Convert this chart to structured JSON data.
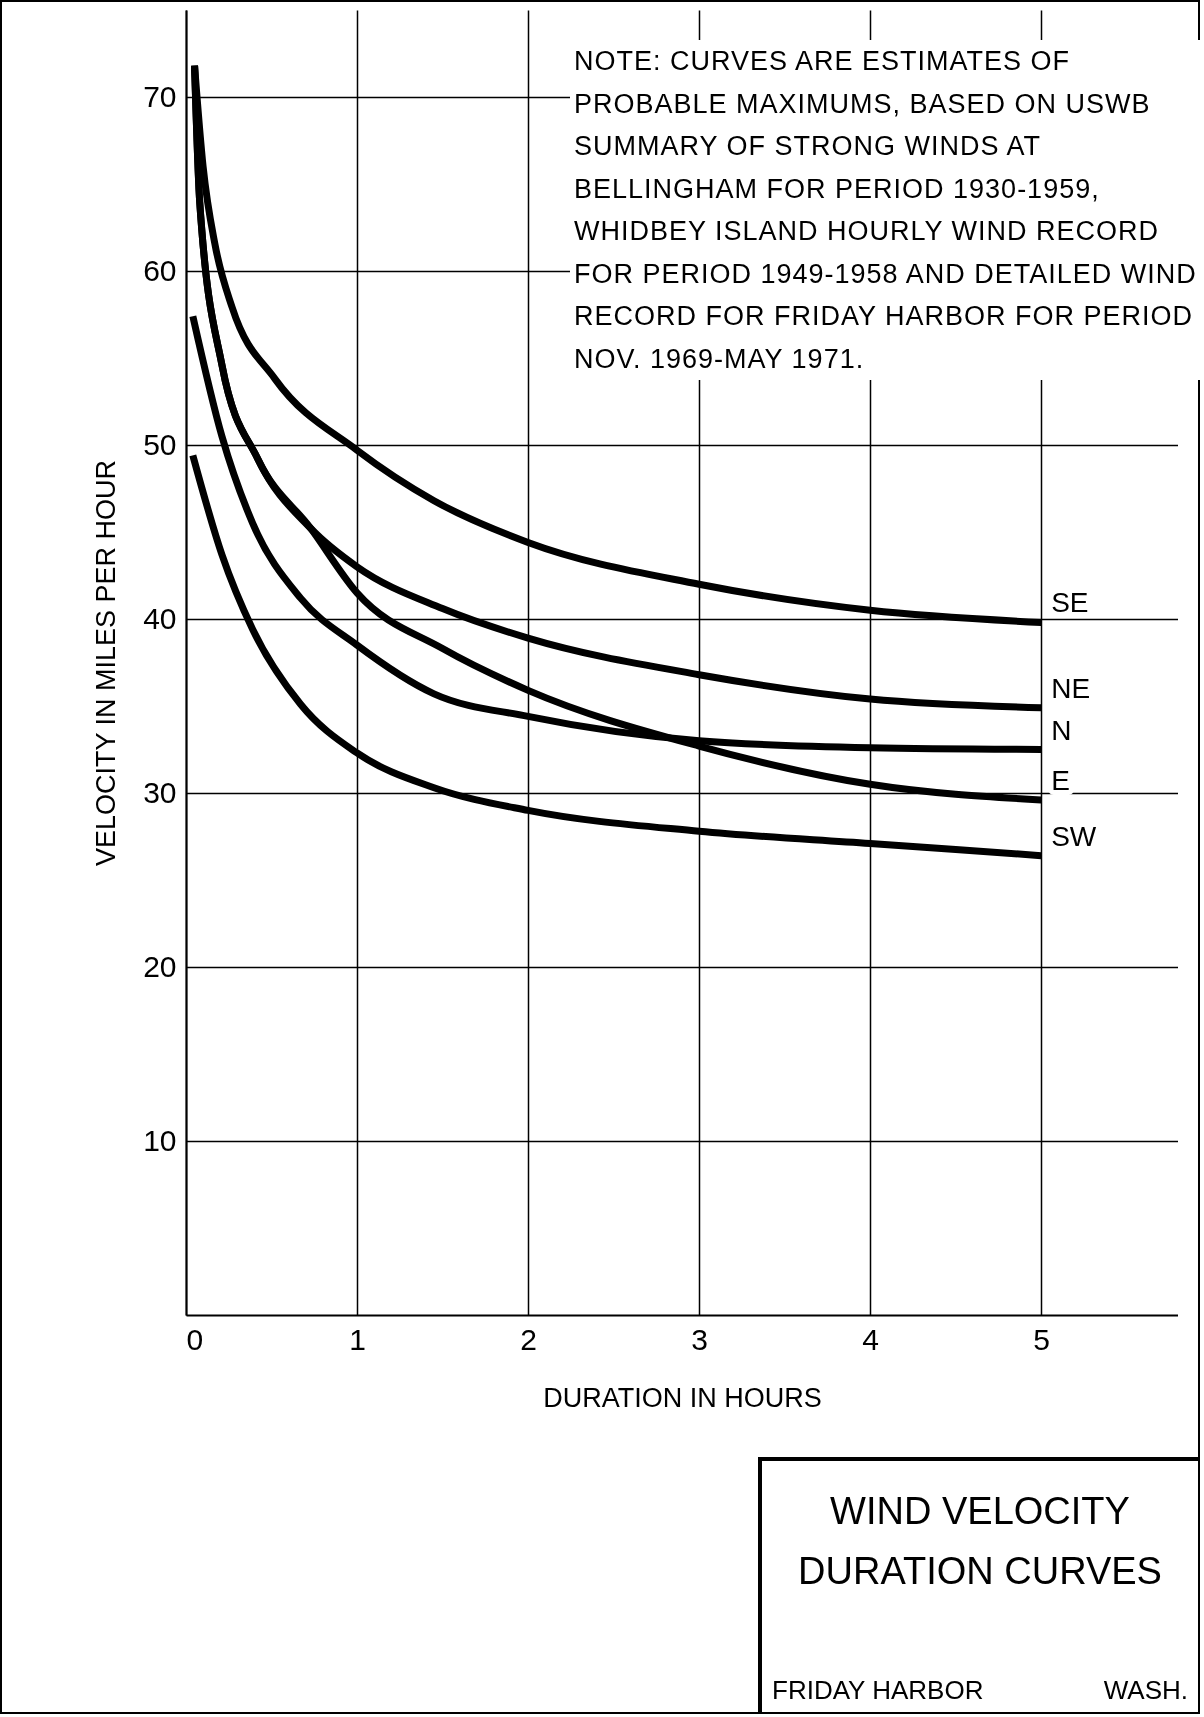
{
  "chart_data": {
    "type": "line",
    "title": "WIND VELOCITY DURATION CURVES",
    "subtitle": "FRIDAY HARBOR WASH.",
    "xlabel": "DURATION IN HOURS",
    "ylabel": "VELOCITY IN MILES PER HOUR",
    "annotations": [
      "NOTE: CURVES ARE ESTIMATES OF PROBABLE MAXIMUMS, BASED ON USWB SUMMARY OF STRONG WINDS AT BELLINGHAM FOR PERIOD 1930-1959, WHIDBEY ISLAND HOURLY WIND RECORD FOR PERIOD 1949-1958 AND DETAILED WIND RECORD FOR FRIDAY HARBOR FOR PERIOD NOV. 1969-MAY 1971."
    ],
    "xlim": [
      0,
      5.8
    ],
    "ylim": [
      0,
      75
    ],
    "xticks": [
      0,
      1,
      2,
      3,
      4,
      5
    ],
    "yticks": [
      10,
      20,
      30,
      40,
      50,
      60,
      70
    ],
    "grid": true,
    "legend": false,
    "marker": "none",
    "line_style": "solid",
    "series": [
      {
        "name": "SE",
        "color": "#000000",
        "x": [
          0.05,
          0.1,
          0.17,
          0.27,
          0.52,
          1,
          1.45,
          2,
          3,
          4,
          5
        ],
        "values": [
          71.8,
          66,
          61.5,
          57.9,
          53.8,
          49.7,
          46.8,
          44.4,
          42,
          40.5,
          39.8
        ]
      },
      {
        "name": "NE",
        "color": "#000000",
        "x": [
          0.05,
          0.08,
          0.21,
          0.42,
          0.73,
          1,
          1.5,
          2,
          3,
          4,
          5
        ],
        "values": [
          71.8,
          64,
          54.6,
          49.2,
          45.2,
          43,
          40.6,
          38.9,
          36.8,
          35.4,
          34.9
        ]
      },
      {
        "name": "N",
        "color": "#000000",
        "x": [
          0.04,
          0.21,
          0.39,
          0.67,
          1,
          1.45,
          2,
          3,
          4,
          5
        ],
        "values": [
          57.4,
          50.5,
          45.5,
          41.2,
          38.5,
          35.7,
          34.4,
          33,
          32.6,
          32.5
        ]
      },
      {
        "name": "E",
        "color": "#000000",
        "x": [
          0.05,
          0.08,
          0.21,
          0.42,
          0.73,
          1,
          1.5,
          2,
          3,
          4,
          5
        ],
        "values": [
          71.8,
          64,
          54.6,
          49.2,
          45.2,
          41.5,
          38.3,
          35.9,
          32.7,
          30.5,
          29.6
        ]
      },
      {
        "name": "SW",
        "color": "#000000",
        "x": [
          0.04,
          0.21,
          0.39,
          0.67,
          1,
          1.45,
          2,
          3,
          4,
          5
        ],
        "values": [
          49.4,
          43.7,
          39.4,
          35.1,
          32.3,
          30.3,
          29,
          27.8,
          27.1,
          26.4
        ]
      }
    ]
  }
}
